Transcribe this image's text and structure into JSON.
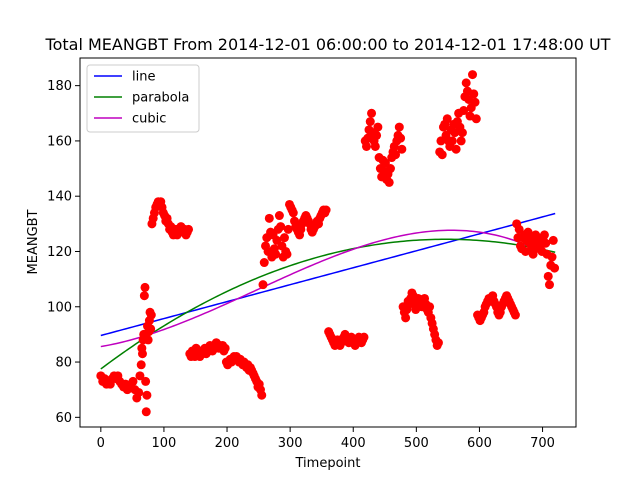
{
  "chart_data": {
    "type": "scatter",
    "title": "Total MEANGBT From 2014-12-01 06:00:00 to 2014-12-01 17:48:00 UT",
    "xlabel": "Timepoint",
    "ylabel": "MEANGBT",
    "xlim": [
      -33,
      753
    ],
    "ylim": [
      56.5,
      190
    ],
    "xticks": [
      0,
      100,
      200,
      300,
      400,
      500,
      600,
      700
    ],
    "yticks": [
      60,
      80,
      100,
      120,
      140,
      160,
      180
    ],
    "legend_position": "top-left",
    "grid": false,
    "scatter_color": "#ff0000",
    "points": [
      [
        0,
        75
      ],
      [
        3,
        73
      ],
      [
        6,
        74
      ],
      [
        9,
        72
      ],
      [
        12,
        73
      ],
      [
        15,
        72
      ],
      [
        18,
        74
      ],
      [
        21,
        75
      ],
      [
        24,
        74
      ],
      [
        27,
        75
      ],
      [
        30,
        73
      ],
      [
        33,
        72
      ],
      [
        36,
        71
      ],
      [
        39,
        72
      ],
      [
        42,
        70
      ],
      [
        45,
        71
      ],
      [
        48,
        72
      ],
      [
        51,
        73
      ],
      [
        54,
        70
      ],
      [
        57,
        67
      ],
      [
        60,
        69
      ],
      [
        62,
        75
      ],
      [
        64,
        79
      ],
      [
        65,
        85
      ],
      [
        66,
        83
      ],
      [
        67,
        88
      ],
      [
        68,
        90
      ],
      [
        69,
        104
      ],
      [
        70,
        107
      ],
      [
        71,
        73
      ],
      [
        72,
        62
      ],
      [
        73,
        68
      ],
      [
        74,
        93
      ],
      [
        75,
        88
      ],
      [
        76,
        91
      ],
      [
        77,
        95
      ],
      [
        78,
        98
      ],
      [
        79,
        92
      ],
      [
        80,
        97
      ],
      [
        81,
        130
      ],
      [
        83,
        132
      ],
      [
        85,
        134
      ],
      [
        87,
        136
      ],
      [
        89,
        137
      ],
      [
        91,
        138
      ],
      [
        93,
        137
      ],
      [
        95,
        138
      ],
      [
        97,
        136
      ],
      [
        99,
        134
      ],
      [
        101,
        133
      ],
      [
        103,
        131
      ],
      [
        105,
        132
      ],
      [
        107,
        130
      ],
      [
        109,
        128
      ],
      [
        111,
        129
      ],
      [
        113,
        127
      ],
      [
        115,
        126
      ],
      [
        117,
        127
      ],
      [
        119,
        128
      ],
      [
        121,
        126
      ],
      [
        123,
        127
      ],
      [
        125,
        128
      ],
      [
        127,
        129
      ],
      [
        129,
        128
      ],
      [
        131,
        127
      ],
      [
        133,
        128
      ],
      [
        135,
        126
      ],
      [
        137,
        127
      ],
      [
        139,
        128
      ],
      [
        141,
        83
      ],
      [
        143,
        82
      ],
      [
        145,
        84
      ],
      [
        147,
        83
      ],
      [
        149,
        82
      ],
      [
        151,
        85
      ],
      [
        153,
        84
      ],
      [
        155,
        83
      ],
      [
        157,
        82
      ],
      [
        159,
        84
      ],
      [
        161,
        83
      ],
      [
        163,
        84
      ],
      [
        165,
        85
      ],
      [
        167,
        83
      ],
      [
        169,
        84
      ],
      [
        171,
        85
      ],
      [
        173,
        86
      ],
      [
        175,
        85
      ],
      [
        177,
        84
      ],
      [
        179,
        86
      ],
      [
        181,
        85
      ],
      [
        183,
        87
      ],
      [
        185,
        86
      ],
      [
        187,
        85
      ],
      [
        189,
        86
      ],
      [
        191,
        85
      ],
      [
        193,
        86
      ],
      [
        195,
        84
      ],
      [
        197,
        85
      ],
      [
        199,
        80
      ],
      [
        201,
        79
      ],
      [
        203,
        80
      ],
      [
        205,
        81
      ],
      [
        207,
        80
      ],
      [
        209,
        81
      ],
      [
        211,
        82
      ],
      [
        213,
        81
      ],
      [
        215,
        82
      ],
      [
        217,
        81
      ],
      [
        219,
        80
      ],
      [
        221,
        81
      ],
      [
        223,
        80
      ],
      [
        225,
        79
      ],
      [
        227,
        80
      ],
      [
        229,
        79
      ],
      [
        231,
        78
      ],
      [
        233,
        79
      ],
      [
        235,
        77
      ],
      [
        237,
        78
      ],
      [
        239,
        77
      ],
      [
        241,
        76
      ],
      [
        243,
        75
      ],
      [
        245,
        74
      ],
      [
        247,
        73
      ],
      [
        249,
        71
      ],
      [
        251,
        72
      ],
      [
        253,
        70
      ],
      [
        255,
        68
      ],
      [
        257,
        108
      ],
      [
        259,
        116
      ],
      [
        261,
        122
      ],
      [
        263,
        125
      ],
      [
        265,
        120
      ],
      [
        267,
        132
      ],
      [
        269,
        127
      ],
      [
        271,
        118
      ],
      [
        273,
        126
      ],
      [
        275,
        121
      ],
      [
        277,
        119
      ],
      [
        279,
        124
      ],
      [
        281,
        128
      ],
      [
        283,
        133
      ],
      [
        285,
        129
      ],
      [
        287,
        122
      ],
      [
        289,
        118
      ],
      [
        291,
        125
      ],
      [
        293,
        120
      ],
      [
        295,
        119
      ],
      [
        297,
        128
      ],
      [
        299,
        137
      ],
      [
        301,
        136
      ],
      [
        303,
        135
      ],
      [
        305,
        134
      ],
      [
        307,
        131
      ],
      [
        309,
        129
      ],
      [
        311,
        128
      ],
      [
        313,
        127
      ],
      [
        315,
        126
      ],
      [
        317,
        128
      ],
      [
        319,
        130
      ],
      [
        321,
        131
      ],
      [
        323,
        132
      ],
      [
        325,
        133
      ],
      [
        327,
        132
      ],
      [
        329,
        131
      ],
      [
        331,
        130
      ],
      [
        333,
        128
      ],
      [
        335,
        127
      ],
      [
        337,
        128
      ],
      [
        339,
        129
      ],
      [
        341,
        130
      ],
      [
        343,
        131
      ],
      [
        345,
        130
      ],
      [
        347,
        132
      ],
      [
        349,
        133
      ],
      [
        351,
        134
      ],
      [
        353,
        135
      ],
      [
        355,
        134
      ],
      [
        357,
        135
      ],
      [
        361,
        91
      ],
      [
        363,
        90
      ],
      [
        365,
        89
      ],
      [
        367,
        88
      ],
      [
        369,
        87
      ],
      [
        371,
        86
      ],
      [
        373,
        87
      ],
      [
        375,
        88
      ],
      [
        377,
        87
      ],
      [
        379,
        86
      ],
      [
        381,
        87
      ],
      [
        383,
        88
      ],
      [
        385,
        89
      ],
      [
        387,
        90
      ],
      [
        389,
        89
      ],
      [
        391,
        88
      ],
      [
        393,
        87
      ],
      [
        395,
        88
      ],
      [
        397,
        89
      ],
      [
        399,
        88
      ],
      [
        401,
        87
      ],
      [
        403,
        86
      ],
      [
        405,
        87
      ],
      [
        407,
        88
      ],
      [
        409,
        89
      ],
      [
        411,
        88
      ],
      [
        413,
        87
      ],
      [
        415,
        88
      ],
      [
        417,
        89
      ],
      [
        419,
        160
      ],
      [
        421,
        158
      ],
      [
        423,
        161
      ],
      [
        425,
        164
      ],
      [
        427,
        167
      ],
      [
        429,
        170
      ],
      [
        431,
        163
      ],
      [
        433,
        160
      ],
      [
        435,
        158
      ],
      [
        437,
        162
      ],
      [
        439,
        165
      ],
      [
        441,
        154
      ],
      [
        443,
        150
      ],
      [
        445,
        147
      ],
      [
        447,
        153
      ],
      [
        449,
        149
      ],
      [
        451,
        152
      ],
      [
        453,
        146
      ],
      [
        455,
        148
      ],
      [
        457,
        145
      ],
      [
        459,
        150
      ],
      [
        461,
        154
      ],
      [
        463,
        156
      ],
      [
        465,
        158
      ],
      [
        467,
        155
      ],
      [
        469,
        160
      ],
      [
        471,
        162
      ],
      [
        473,
        165
      ],
      [
        475,
        161
      ],
      [
        477,
        157
      ],
      [
        479,
        100
      ],
      [
        481,
        98
      ],
      [
        483,
        96
      ],
      [
        485,
        99
      ],
      [
        487,
        102
      ],
      [
        489,
        101
      ],
      [
        491,
        103
      ],
      [
        493,
        105
      ],
      [
        495,
        104
      ],
      [
        497,
        102
      ],
      [
        499,
        99
      ],
      [
        501,
        101
      ],
      [
        503,
        103
      ],
      [
        505,
        102
      ],
      [
        507,
        101
      ],
      [
        509,
        100
      ],
      [
        511,
        102
      ],
      [
        513,
        103
      ],
      [
        515,
        101
      ],
      [
        517,
        99
      ],
      [
        519,
        98
      ],
      [
        521,
        100
      ],
      [
        523,
        96
      ],
      [
        525,
        94
      ],
      [
        527,
        92
      ],
      [
        529,
        90
      ],
      [
        531,
        88
      ],
      [
        533,
        86
      ],
      [
        535,
        87
      ],
      [
        537,
        156
      ],
      [
        539,
        160
      ],
      [
        541,
        155
      ],
      [
        543,
        165
      ],
      [
        545,
        166
      ],
      [
        547,
        162
      ],
      [
        549,
        168
      ],
      [
        551,
        160
      ],
      [
        553,
        158
      ],
      [
        555,
        164
      ],
      [
        557,
        160
      ],
      [
        559,
        166
      ],
      [
        561,
        163
      ],
      [
        563,
        157
      ],
      [
        565,
        167
      ],
      [
        567,
        170
      ],
      [
        569,
        165
      ],
      [
        571,
        160
      ],
      [
        573,
        163
      ],
      [
        575,
        171
      ],
      [
        577,
        176
      ],
      [
        579,
        181
      ],
      [
        581,
        178
      ],
      [
        583,
        175
      ],
      [
        585,
        169
      ],
      [
        587,
        172
      ],
      [
        589,
        184
      ],
      [
        591,
        177
      ],
      [
        593,
        174
      ],
      [
        595,
        168
      ],
      [
        597,
        97
      ],
      [
        599,
        96
      ],
      [
        601,
        95
      ],
      [
        603,
        96
      ],
      [
        605,
        97
      ],
      [
        607,
        98
      ],
      [
        609,
        100
      ],
      [
        611,
        101
      ],
      [
        613,
        102
      ],
      [
        615,
        103
      ],
      [
        617,
        102
      ],
      [
        619,
        103
      ],
      [
        621,
        104
      ],
      [
        623,
        102
      ],
      [
        625,
        101
      ],
      [
        627,
        100
      ],
      [
        629,
        98
      ],
      [
        631,
        97
      ],
      [
        633,
        98
      ],
      [
        635,
        100
      ],
      [
        637,
        101
      ],
      [
        639,
        102
      ],
      [
        641,
        103
      ],
      [
        643,
        104
      ],
      [
        645,
        103
      ],
      [
        647,
        102
      ],
      [
        649,
        101
      ],
      [
        651,
        100
      ],
      [
        653,
        99
      ],
      [
        655,
        98
      ],
      [
        657,
        97
      ],
      [
        659,
        130
      ],
      [
        661,
        125
      ],
      [
        663,
        128
      ],
      [
        665,
        122
      ],
      [
        667,
        121
      ],
      [
        669,
        125
      ],
      [
        671,
        126
      ],
      [
        673,
        120
      ],
      [
        675,
        124
      ],
      [
        677,
        127
      ],
      [
        679,
        123
      ],
      [
        681,
        125
      ],
      [
        683,
        121
      ],
      [
        685,
        119
      ],
      [
        687,
        123
      ],
      [
        689,
        126
      ],
      [
        691,
        124
      ],
      [
        693,
        125
      ],
      [
        695,
        121
      ],
      [
        697,
        122
      ],
      [
        699,
        120
      ],
      [
        701,
        124
      ],
      [
        703,
        126
      ],
      [
        705,
        123
      ],
      [
        707,
        119
      ],
      [
        709,
        111
      ],
      [
        711,
        108
      ],
      [
        713,
        115
      ],
      [
        715,
        118
      ],
      [
        717,
        124
      ],
      [
        719,
        114
      ]
    ],
    "series": [
      {
        "name": "line",
        "color": "#0000ff",
        "coeffs": [
          89.6,
          0.0613
        ]
      },
      {
        "name": "parabola",
        "color": "#008000",
        "coeffs": [
          77.5,
          0.1716,
          -0.0001569
        ]
      },
      {
        "name": "cubic",
        "color": "#bf00bf",
        "coeffs": [
          85.6,
          0.0385,
          0.0002697,
          -3.648e-07
        ]
      }
    ],
    "fit_x_range": [
      0,
      720
    ]
  }
}
